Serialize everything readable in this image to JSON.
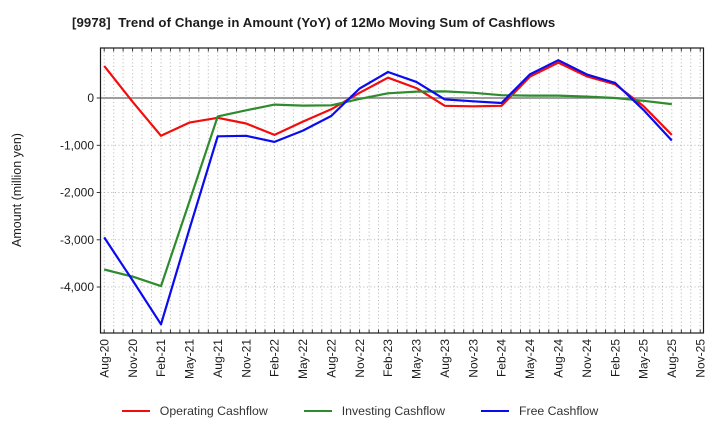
{
  "chart_data": {
    "type": "line",
    "title": "[9978]  Trend of Change in Amount (YoY) of 12Mo Moving Sum of Cashflows",
    "xlabel": "",
    "ylabel": "Amount (million yen)",
    "categories": [
      "Aug-20",
      "Nov-20",
      "Feb-21",
      "May-21",
      "Aug-21",
      "Nov-21",
      "Feb-22",
      "May-22",
      "Aug-22",
      "Nov-22",
      "Feb-23",
      "May-23",
      "Aug-23",
      "Nov-23",
      "Feb-24",
      "May-24",
      "Aug-24",
      "Nov-24",
      "Feb-25",
      "May-25",
      "Aug-25",
      "Nov-25"
    ],
    "series": [
      {
        "name": "Operating Cashflow",
        "color": "#f20d0d",
        "values": [
          680,
          -80,
          -800,
          -520,
          -420,
          -540,
          -780,
          -500,
          -240,
          110,
          430,
          210,
          -165,
          -175,
          -165,
          450,
          750,
          460,
          290,
          -170,
          -780,
          null
        ]
      },
      {
        "name": "Investing Cashflow",
        "color": "#2e8b2e",
        "values": [
          -3630,
          -3780,
          -3980,
          -2200,
          -390,
          -260,
          -140,
          -160,
          -155,
          -20,
          100,
          135,
          140,
          110,
          60,
          50,
          50,
          30,
          0,
          -60,
          -130,
          null
        ]
      },
      {
        "name": "Free Cashflow",
        "color": "#0b0bf0",
        "values": [
          -2950,
          -3860,
          -4790,
          -2780,
          -810,
          -800,
          -930,
          -690,
          -380,
          200,
          550,
          340,
          -30,
          -70,
          -105,
          500,
          800,
          500,
          320,
          -250,
          -900,
          null
        ]
      }
    ],
    "yticks": [
      0,
      -1000,
      -2000,
      -3000,
      -4000
    ],
    "ylim": [
      -5000,
      1100
    ],
    "grid": "monthly vertical dotted lines, horizontal dotted lines each 1000, solid gray zero line",
    "legend_position": "bottom"
  }
}
